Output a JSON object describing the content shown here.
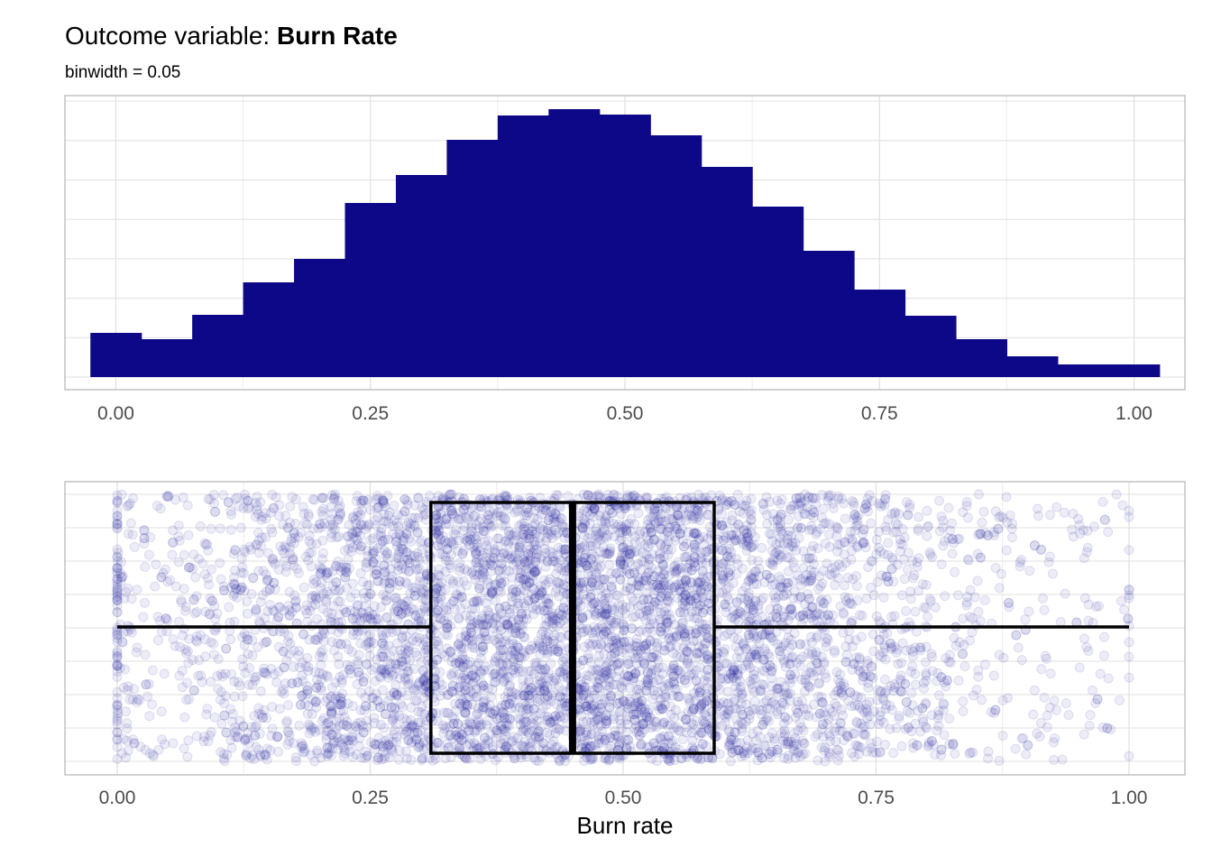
{
  "title": {
    "prefix": "Outcome variable: ",
    "bold": "Burn Rate"
  },
  "subtitle": "binwidth = 0.05",
  "colors": {
    "bar_fill": "#0d0887",
    "point": "#1a1a9e",
    "box": "#000000",
    "grid": "#e0e0e0",
    "panel_border": "#b3b3b3"
  },
  "chart_data": [
    {
      "type": "bar",
      "subtype": "histogram",
      "binwidth": 0.05,
      "x": [
        0.0,
        0.05,
        0.1,
        0.15,
        0.2,
        0.25,
        0.3,
        0.35,
        0.4,
        0.45,
        0.5,
        0.55,
        0.6,
        0.65,
        0.7,
        0.75,
        0.8,
        0.85,
        0.9,
        0.95,
        1.0
      ],
      "values": [
        49,
        42,
        69,
        105,
        131,
        193,
        224,
        263,
        290,
        297,
        291,
        268,
        233,
        189,
        140,
        97,
        68,
        42,
        23,
        14,
        14
      ],
      "xlim": [
        -0.05,
        1.05
      ],
      "ylim": [
        0,
        310
      ],
      "x_ticks": [
        "0.00",
        "0.25",
        "0.50",
        "0.75",
        "1.00"
      ],
      "x_tick_values": [
        0,
        0.25,
        0.5,
        0.75,
        1.0
      ],
      "xlabel": "",
      "ylabel": "",
      "grid": true,
      "y_axis_labels": false
    },
    {
      "type": "scatter",
      "subtype": "boxplot-with-jitter",
      "box": {
        "whisker_low": 0.0,
        "q1": 0.31,
        "median": 0.45,
        "q3": 0.59,
        "whisker_high": 1.0
      },
      "points": {
        "distribution": "approximately normal, mean 0.45, sd 0.2, clipped to [0, 1]",
        "count_approx": 6000
      },
      "xlim": [
        -0.05,
        1.05
      ],
      "x_ticks": [
        "0.00",
        "0.25",
        "0.50",
        "0.75",
        "1.00"
      ],
      "x_tick_values": [
        0,
        0.25,
        0.5,
        0.75,
        1.0
      ],
      "xlabel": "Burn rate",
      "ylabel": "",
      "grid": true,
      "y_axis_labels": false
    }
  ]
}
